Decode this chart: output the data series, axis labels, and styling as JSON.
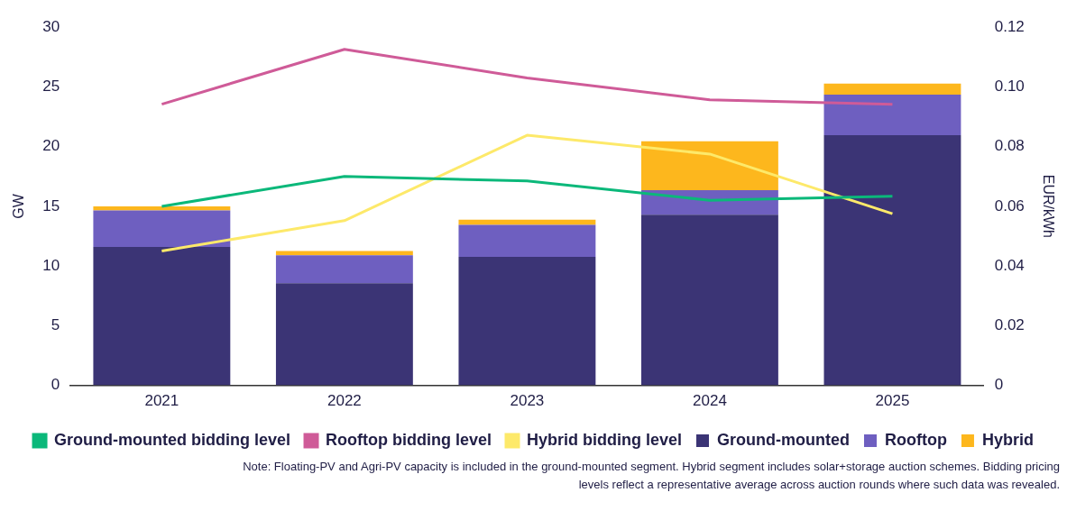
{
  "chart_data": {
    "type": "bar",
    "stacked": true,
    "categories": [
      "2021",
      "2022",
      "2023",
      "2024",
      "2025"
    ],
    "series": [
      {
        "name": "Ground-mounted",
        "color": "#3b3475",
        "values": [
          11.6,
          8.56,
          10.76,
          14.3,
          20.95
        ]
      },
      {
        "name": "Rooftop",
        "color": "#6e5fc0",
        "values": [
          3.05,
          2.34,
          2.69,
          2.05,
          3.4
        ]
      },
      {
        "name": "Hybrid",
        "color": "#fdb71d",
        "values": [
          0.35,
          0.35,
          0.42,
          4.1,
          0.92
        ]
      },
      {
        "name": "Ground-mounted bidding level",
        "type": "line",
        "axis": "y2",
        "color": "#0bb87a",
        "values": [
          0.06,
          0.07,
          0.0685,
          0.062,
          0.0634
        ]
      },
      {
        "name": "Rooftop bidding level",
        "type": "line",
        "axis": "y2",
        "color": "#cf5b98",
        "values": [
          0.0942,
          0.1126,
          0.103,
          0.0957,
          0.0942
        ]
      },
      {
        "name": "Hybrid bidding level",
        "type": "line",
        "axis": "y2",
        "color": "#fde96a",
        "values": [
          0.045,
          0.0552,
          0.0838,
          0.0775,
          0.0575
        ]
      }
    ],
    "ylabel": "GW",
    "y2label": "EUR/kWh",
    "ylim": [
      0,
      30
    ],
    "yticks": [
      0,
      5,
      10,
      15,
      20,
      25,
      30
    ],
    "y2lim": [
      0,
      0.12
    ],
    "y2ticks": [
      0,
      0.02,
      0.04,
      0.06,
      0.08,
      {
        "value": 0.1,
        "label": "0.10"
      },
      0.12
    ],
    "grid": false,
    "legend": "bottom",
    "marker": "none",
    "line_style": "solid",
    "annotations": [
      "Note: Floating-PV and Agri-PV capacity is included in the ground-mounted segment. Hybrid segment includes solar+storage auction schemes. Bidding pricing levels reflect a representative average across auction rounds where such data was revealed."
    ]
  }
}
